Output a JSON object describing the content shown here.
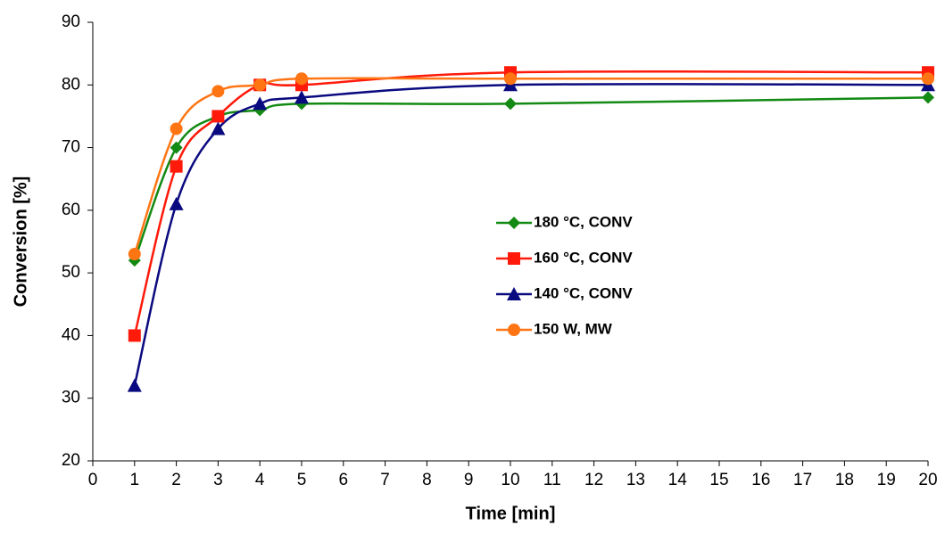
{
  "chart_data": {
    "type": "line",
    "x_label": "Time [min]",
    "y_label": "Conversion [%]",
    "x": [
      1,
      2,
      3,
      4,
      5,
      10,
      20
    ],
    "xlim": [
      0,
      20
    ],
    "xticks": [
      0,
      1,
      2,
      3,
      4,
      5,
      6,
      7,
      8,
      9,
      10,
      11,
      12,
      13,
      14,
      15,
      16,
      17,
      18,
      19,
      20
    ],
    "ylim": [
      20,
      90
    ],
    "yticks": [
      20,
      30,
      40,
      50,
      60,
      70,
      80,
      90
    ],
    "smooth": true,
    "grid": false,
    "series": [
      {
        "name": "180 °C, CONV",
        "color": "#138a13",
        "marker": "diamond",
        "values": [
          52,
          70,
          75,
          76,
          77,
          77,
          78
        ]
      },
      {
        "name": "160 °C, CONV",
        "color": "#ff1a0a",
        "marker": "square",
        "values": [
          40,
          67,
          75,
          80,
          80,
          82,
          82
        ]
      },
      {
        "name": "140 °C, CONV",
        "color": "#0a0a80",
        "marker": "triangle",
        "values": [
          32,
          61,
          73,
          77,
          78,
          80,
          80
        ]
      },
      {
        "name": "150 W, MW",
        "color": "#ff7514",
        "marker": "circle",
        "values": [
          53,
          73,
          79,
          80,
          81,
          81,
          81
        ]
      }
    ]
  }
}
